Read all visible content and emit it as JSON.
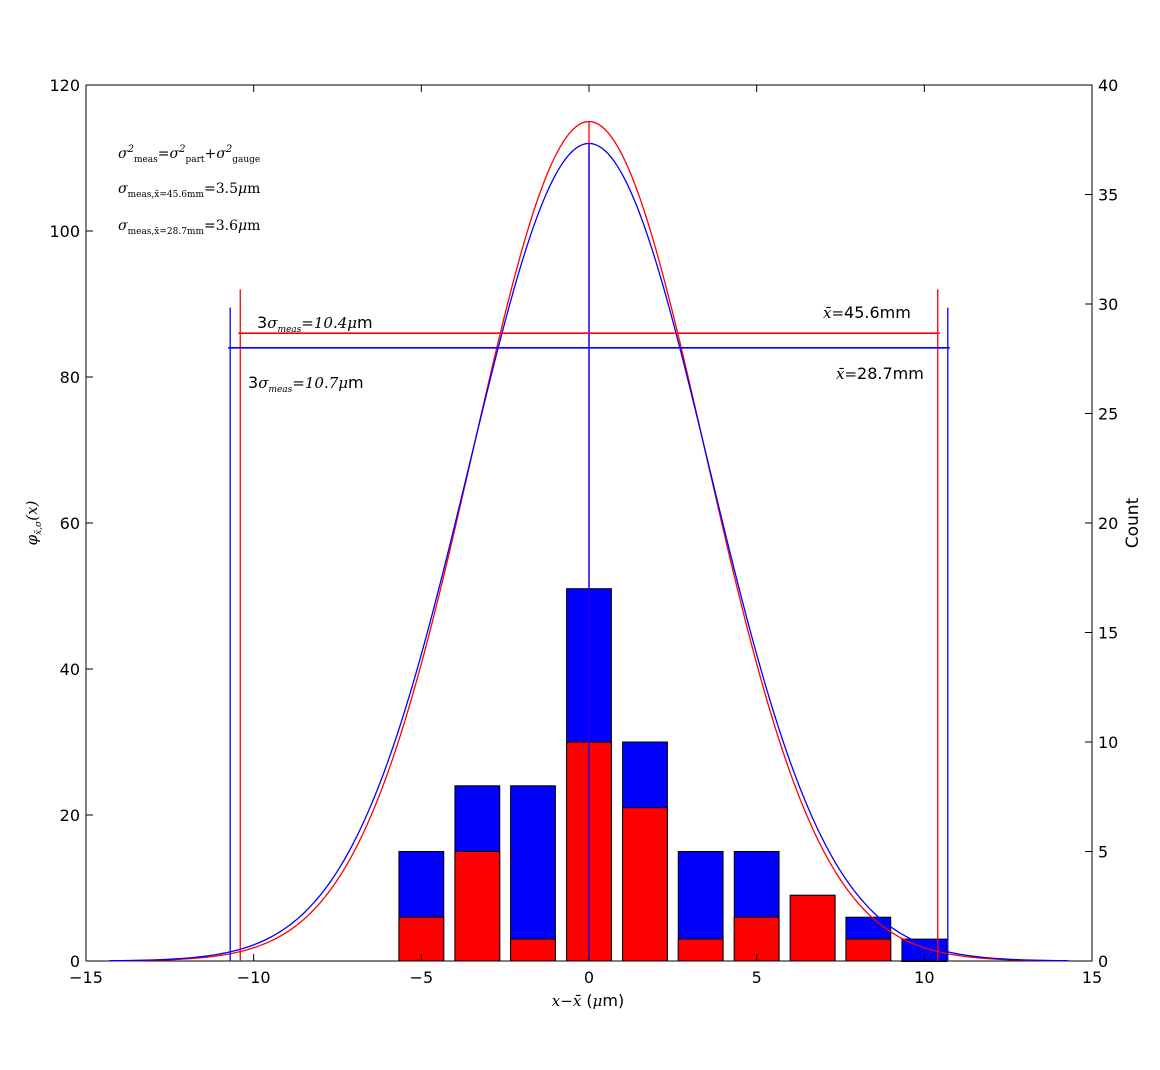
{
  "chart_data": {
    "type": "bar",
    "title": "",
    "xlabel": "x−x̄ (μm)",
    "ylabel_left": "φx̄,σ(x)",
    "ylabel_right": "Count",
    "xlim": [
      -15,
      15
    ],
    "ylim_left": [
      0,
      120
    ],
    "ylim_right": [
      0,
      40
    ],
    "x_ticks": [
      "−15",
      "−10",
      "−5",
      "0",
      "5",
      "10",
      "15"
    ],
    "y_left_ticks": [
      "0",
      "20",
      "40",
      "60",
      "80",
      "100",
      "120"
    ],
    "y_right_ticks": [
      "0",
      "5",
      "10",
      "15",
      "20",
      "25",
      "30",
      "35",
      "40"
    ],
    "grid": false,
    "histogram": {
      "bin_centers": [
        -5,
        -3.33,
        -1.67,
        0,
        1.67,
        3.33,
        5,
        6.67,
        8.33,
        10
      ],
      "series": [
        {
          "color": "#0000ff",
          "values": [
            5,
            8,
            8,
            17,
            10,
            5,
            5,
            3,
            2,
            1
          ]
        },
        {
          "color": "#ff0000",
          "values": [
            2,
            5,
            1,
            10,
            7,
            1,
            2,
            3,
            1,
            0
          ]
        }
      ]
    },
    "curves": [
      {
        "color": "#ff0000",
        "mean": 0,
        "sigma": 3.47,
        "peak": 115
      },
      {
        "color": "#0000ff",
        "mean": 0,
        "sigma": 3.57,
        "peak": 112
      }
    ],
    "mean_lines": [
      {
        "color": "#ff0000",
        "x": 0,
        "y_top": 115
      },
      {
        "color": "#0000ff",
        "x": 0,
        "y_top": 112
      }
    ],
    "limit_lines": [
      {
        "color": "#ff0000",
        "x": [
          -10.4,
          10.4
        ],
        "y_top": 92,
        "band_y": 86
      },
      {
        "color": "#0000ff",
        "x": [
          -10.7,
          10.7
        ],
        "y_top": 89.5,
        "band_y": 84
      }
    ],
    "annotations": {
      "formula_1": "σ²meas = σ²part + σ²gauge",
      "formula_2": "σmeas,x̄=45.6mm = 3.5μm",
      "formula_3": "σmeas,x̄=28.7mm = 3.6μm",
      "red_band_label": "3σmeas=10.4μm",
      "blue_band_label": "3σmeas=10.7μm",
      "red_mean_label": "x̄=45.6mm",
      "blue_mean_label": "x̄=28.7mm"
    }
  }
}
